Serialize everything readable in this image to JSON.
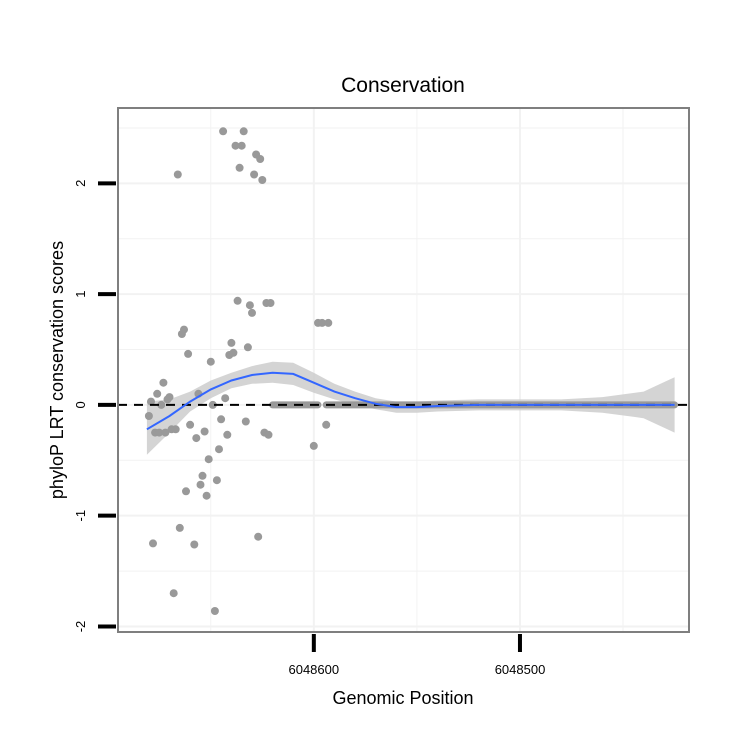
{
  "chart_data": {
    "type": "scatter",
    "title": "Conservation",
    "xlabel": "Genomic Position",
    "ylabel": "phyloP LRT conservation scores",
    "x_reversed": true,
    "xlim": [
      6048695,
      6048418
    ],
    "ylim": [
      -2.05,
      2.68
    ],
    "x_ticks": [
      6048600,
      6048500
    ],
    "x_tick_labels": [
      "6048600",
      "6048500"
    ],
    "y_ticks": [
      -2,
      -1,
      0,
      1,
      2
    ],
    "y_tick_labels": [
      "-2",
      "-1",
      "0",
      "1",
      "2"
    ],
    "grid": true,
    "reference_line": {
      "y": 0,
      "style": "dashed"
    },
    "colors": {
      "points": "#999999",
      "smooth": "#3366ff",
      "band": "#cccccc",
      "reference": "#000000",
      "frame": "#7f7f7f"
    },
    "points": [
      {
        "x": 6048680,
        "y": -0.1
      },
      {
        "x": 6048679,
        "y": 0.03
      },
      {
        "x": 6048678,
        "y": -1.25
      },
      {
        "x": 6048677,
        "y": -0.25
      },
      {
        "x": 6048676,
        "y": 0.1
      },
      {
        "x": 6048675,
        "y": -0.25
      },
      {
        "x": 6048674,
        "y": 0.0
      },
      {
        "x": 6048673,
        "y": 0.2
      },
      {
        "x": 6048672,
        "y": -0.25
      },
      {
        "x": 6048671,
        "y": 0.05
      },
      {
        "x": 6048670,
        "y": 0.07
      },
      {
        "x": 6048669,
        "y": -0.22
      },
      {
        "x": 6048668,
        "y": -1.7
      },
      {
        "x": 6048667,
        "y": -0.22
      },
      {
        "x": 6048666,
        "y": 2.08
      },
      {
        "x": 6048665,
        "y": -1.11
      },
      {
        "x": 6048664,
        "y": 0.64
      },
      {
        "x": 6048663,
        "y": 0.68
      },
      {
        "x": 6048662,
        "y": -0.78
      },
      {
        "x": 6048661,
        "y": 0.46
      },
      {
        "x": 6048660,
        "y": -0.18
      },
      {
        "x": 6048658,
        "y": -1.26
      },
      {
        "x": 6048657,
        "y": -0.3
      },
      {
        "x": 6048656,
        "y": 0.1
      },
      {
        "x": 6048655,
        "y": -0.72
      },
      {
        "x": 6048654,
        "y": -0.64
      },
      {
        "x": 6048653,
        "y": -0.24
      },
      {
        "x": 6048652,
        "y": -0.82
      },
      {
        "x": 6048651,
        "y": -0.49
      },
      {
        "x": 6048650,
        "y": 0.39
      },
      {
        "x": 6048649,
        "y": 0.0
      },
      {
        "x": 6048648,
        "y": -1.86
      },
      {
        "x": 6048647,
        "y": -0.68
      },
      {
        "x": 6048646,
        "y": -0.4
      },
      {
        "x": 6048645,
        "y": -0.13
      },
      {
        "x": 6048644,
        "y": 2.47
      },
      {
        "x": 6048643,
        "y": 0.06
      },
      {
        "x": 6048642,
        "y": -0.27
      },
      {
        "x": 6048641,
        "y": 0.45
      },
      {
        "x": 6048640,
        "y": 0.56
      },
      {
        "x": 6048639,
        "y": 0.47
      },
      {
        "x": 6048638,
        "y": 2.34
      },
      {
        "x": 6048637,
        "y": 0.94
      },
      {
        "x": 6048636,
        "y": 2.14
      },
      {
        "x": 6048635,
        "y": 2.34
      },
      {
        "x": 6048634,
        "y": 2.47
      },
      {
        "x": 6048633,
        "y": -0.15
      },
      {
        "x": 6048632,
        "y": 0.52
      },
      {
        "x": 6048631,
        "y": 0.9
      },
      {
        "x": 6048630,
        "y": 0.83
      },
      {
        "x": 6048629,
        "y": 2.08
      },
      {
        "x": 6048628,
        "y": 2.26
      },
      {
        "x": 6048627,
        "y": -1.19
      },
      {
        "x": 6048626,
        "y": 2.22
      },
      {
        "x": 6048625,
        "y": 2.03
      },
      {
        "x": 6048624,
        "y": -0.25
      },
      {
        "x": 6048623,
        "y": 0.92
      },
      {
        "x": 6048622,
        "y": -0.27
      },
      {
        "x": 6048621,
        "y": 0.92
      },
      {
        "x": 6048600,
        "y": -0.37
      },
      {
        "x": 6048598,
        "y": 0.74
      },
      {
        "x": 6048596,
        "y": 0.74
      },
      {
        "x": 6048594,
        "y": -0.18
      },
      {
        "x": 6048593,
        "y": 0.74
      }
    ],
    "zero_runs": [
      {
        "from": 6048620,
        "to": 6048598,
        "y": 0
      },
      {
        "from": 6048594,
        "to": 6048425,
        "y": 0
      }
    ],
    "smooth": {
      "x": [
        6048681,
        6048670,
        6048660,
        6048650,
        6048640,
        6048630,
        6048620,
        6048610,
        6048600,
        6048590,
        6048580,
        6048570,
        6048560,
        6048550,
        6048540,
        6048520,
        6048500,
        6048480,
        6048460,
        6048440,
        6048425
      ],
      "y": [
        -0.22,
        -0.1,
        0.03,
        0.14,
        0.22,
        0.27,
        0.29,
        0.28,
        0.2,
        0.12,
        0.06,
        0.01,
        -0.02,
        -0.02,
        -0.01,
        0.0,
        0.0,
        0.0,
        0.0,
        0.0,
        0.0
      ],
      "lower": [
        -0.45,
        -0.25,
        -0.06,
        0.06,
        0.15,
        0.19,
        0.2,
        0.18,
        0.11,
        0.05,
        0.0,
        -0.04,
        -0.07,
        -0.07,
        -0.06,
        -0.05,
        -0.05,
        -0.05,
        -0.07,
        -0.12,
        -0.25
      ],
      "upper": [
        0.03,
        0.05,
        0.12,
        0.22,
        0.29,
        0.35,
        0.39,
        0.38,
        0.29,
        0.19,
        0.12,
        0.06,
        0.03,
        0.03,
        0.04,
        0.05,
        0.05,
        0.05,
        0.07,
        0.12,
        0.25
      ]
    }
  }
}
